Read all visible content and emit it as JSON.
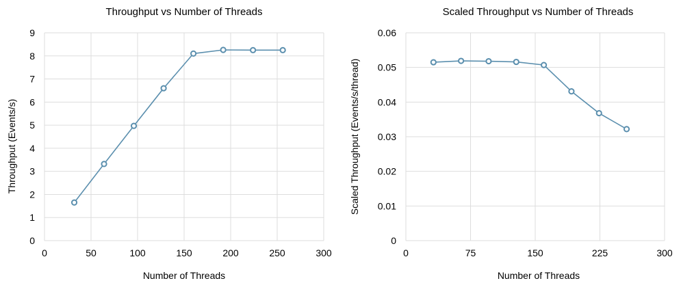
{
  "chart_data": [
    {
      "type": "line",
      "title": "Throughput vs Number of Threads",
      "xlabel": "Number of Threads",
      "ylabel": "Throughput (Events/s)",
      "xlim": [
        0,
        300
      ],
      "ylim": [
        0,
        9
      ],
      "xticks": [
        0,
        50,
        100,
        150,
        200,
        250,
        300
      ],
      "yticks": [
        0,
        1,
        2,
        3,
        4,
        5,
        6,
        7,
        8,
        9
      ],
      "grid": true,
      "line_color": "#5b8fae",
      "x": [
        32,
        64,
        96,
        128,
        160,
        192,
        224,
        256
      ],
      "values": [
        1.65,
        3.32,
        4.97,
        6.6,
        8.1,
        8.26,
        8.25,
        8.25
      ]
    },
    {
      "type": "line",
      "title": "Scaled Throughput vs Number of Threads",
      "xlabel": "Number of Threads",
      "ylabel": "Scaled Throughput (Events/s/thread)",
      "xlim": [
        0,
        300
      ],
      "ylim": [
        0,
        0.06
      ],
      "xticks": [
        0,
        75,
        150,
        225,
        300
      ],
      "yticks": [
        0,
        0.01,
        0.02,
        0.03,
        0.04,
        0.05,
        0.06
      ],
      "ytick_labels": [
        "0",
        "0.01",
        "0.02",
        "0.03",
        "0.04",
        "0.05",
        "0.06"
      ],
      "grid": true,
      "line_color": "#5b8fae",
      "x": [
        32,
        64,
        96,
        128,
        160,
        192,
        224,
        256
      ],
      "values": [
        0.0515,
        0.0519,
        0.0518,
        0.0516,
        0.0507,
        0.0431,
        0.0368,
        0.0322
      ]
    }
  ]
}
